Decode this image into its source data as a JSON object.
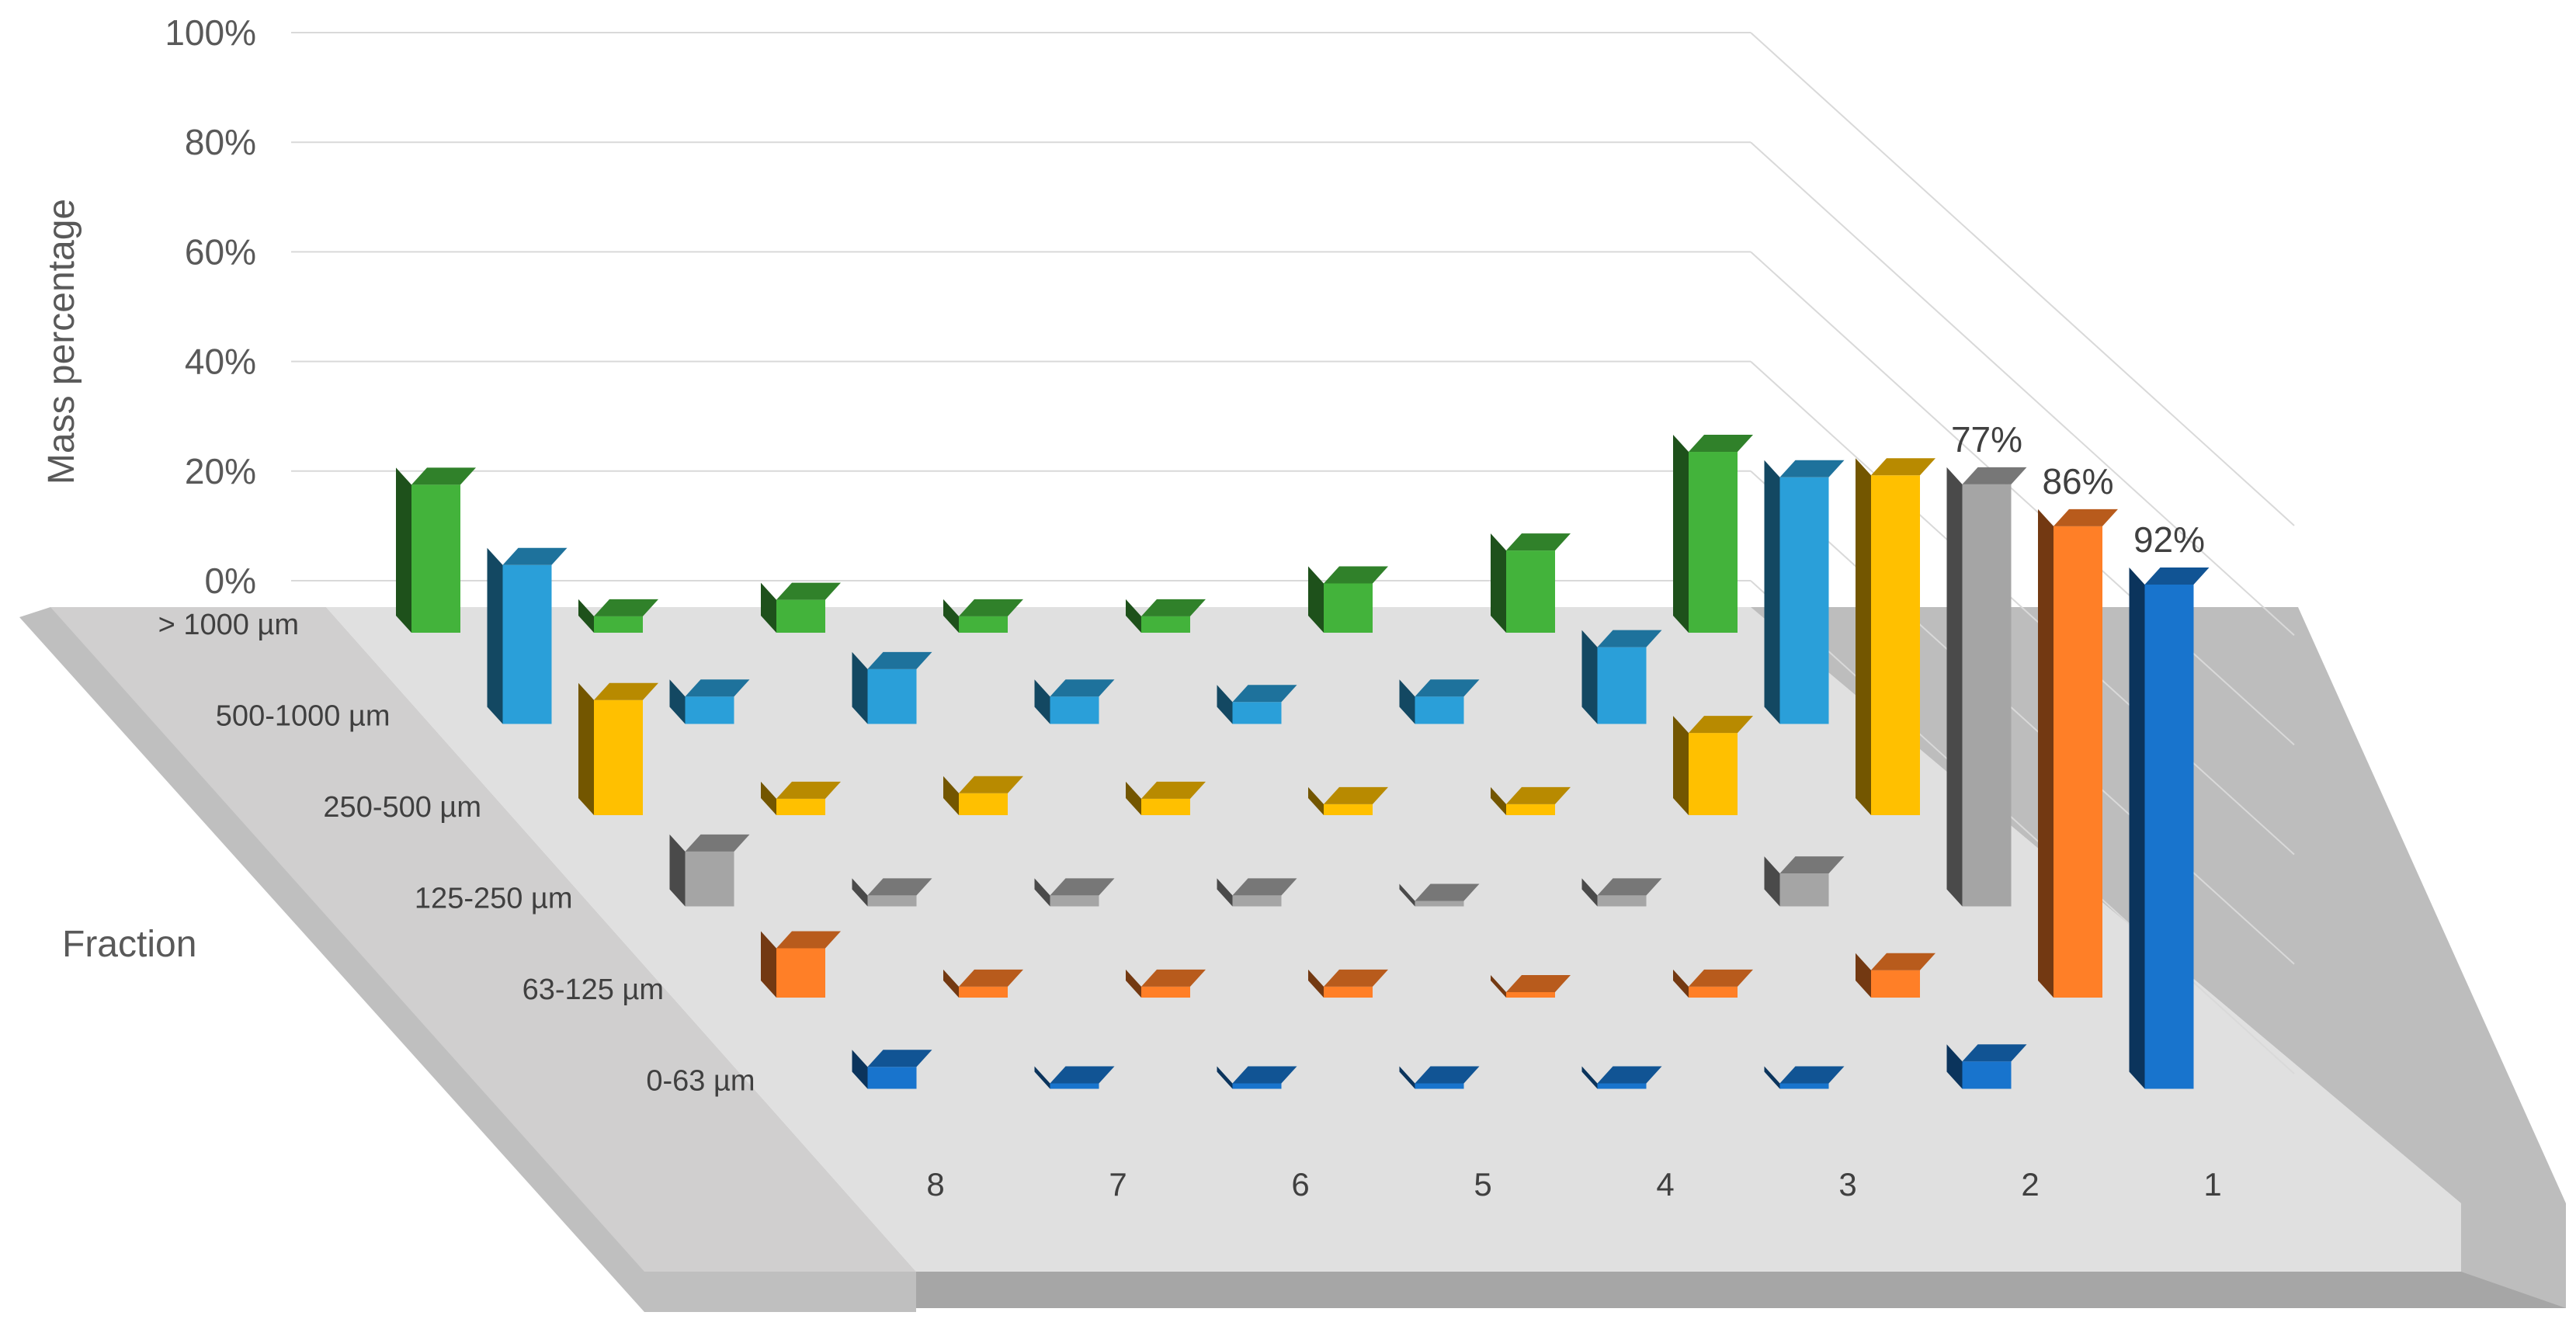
{
  "chart_data": {
    "type": "bar",
    "subtype": "3d-column",
    "ylabel": "Mass percentage",
    "series_axis_label": "Fraction",
    "yticks": [
      "0%",
      "20%",
      "40%",
      "60%",
      "80%",
      "100%"
    ],
    "ylim": [
      0,
      100
    ],
    "grid": true,
    "categories": [
      "8",
      "7",
      "6",
      "5",
      "4",
      "3",
      "2",
      "1"
    ],
    "series": [
      {
        "name": "> 1000 µm",
        "color": "#43B33B",
        "values": [
          27,
          3,
          6,
          3,
          3,
          9,
          15,
          33
        ]
      },
      {
        "name": "500-1000 µm",
        "color": "#2A9FD9",
        "values": [
          29,
          5,
          10,
          5,
          4,
          5,
          14,
          45
        ]
      },
      {
        "name": "250-500 µm",
        "color": "#FFC000",
        "values": [
          21,
          3,
          4,
          3,
          2,
          2,
          15,
          62
        ]
      },
      {
        "name": "125-250 µm",
        "color": "#A5A5A5",
        "values": [
          10,
          2,
          2,
          2,
          1,
          2,
          6,
          77
        ]
      },
      {
        "name": "63-125 µm",
        "color": "#FF7F27",
        "values": [
          9,
          2,
          2,
          2,
          1,
          2,
          5,
          86
        ]
      },
      {
        "name": "0-63 µm",
        "color": "#1874CD",
        "values": [
          4,
          1,
          1,
          1,
          1,
          1,
          5,
          92
        ]
      }
    ],
    "data_labels": [
      "77%",
      "86%",
      "92%"
    ]
  }
}
